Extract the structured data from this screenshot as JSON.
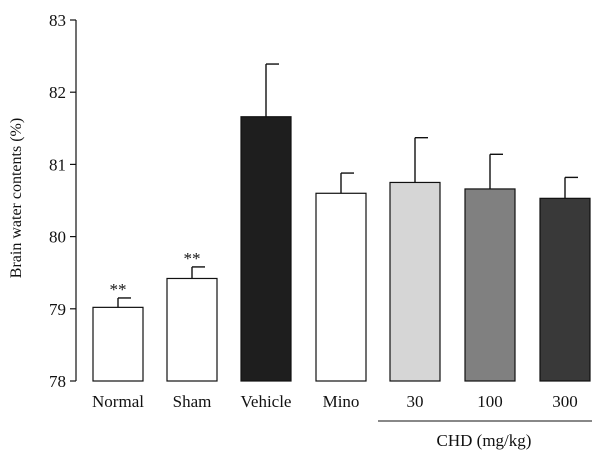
{
  "chart_data": {
    "type": "bar",
    "categories": [
      "Normal",
      "Sham",
      "Vehicle",
      "Mino",
      "30",
      "100",
      "300"
    ],
    "values": [
      79.02,
      79.42,
      81.66,
      80.6,
      80.75,
      80.66,
      80.53
    ],
    "errors": [
      0.13,
      0.16,
      0.73,
      0.28,
      0.62,
      0.48,
      0.29
    ],
    "significance": [
      "**",
      "**",
      "",
      "",
      "",
      "",
      ""
    ],
    "bar_colors": [
      "#ffffff",
      "#ffffff",
      "#1e1e1e",
      "#ffffff",
      "#d6d6d6",
      "#808080",
      "#393939"
    ],
    "ylabel": "Brain water contents (%)",
    "ylim": [
      78,
      83
    ],
    "yticks": [
      "78",
      "79",
      "80",
      "81",
      "82",
      "83"
    ],
    "group_label": "CHD (mg/kg)",
    "group_categories": [
      "30",
      "100",
      "300"
    ],
    "grid": false,
    "legend": "none"
  }
}
